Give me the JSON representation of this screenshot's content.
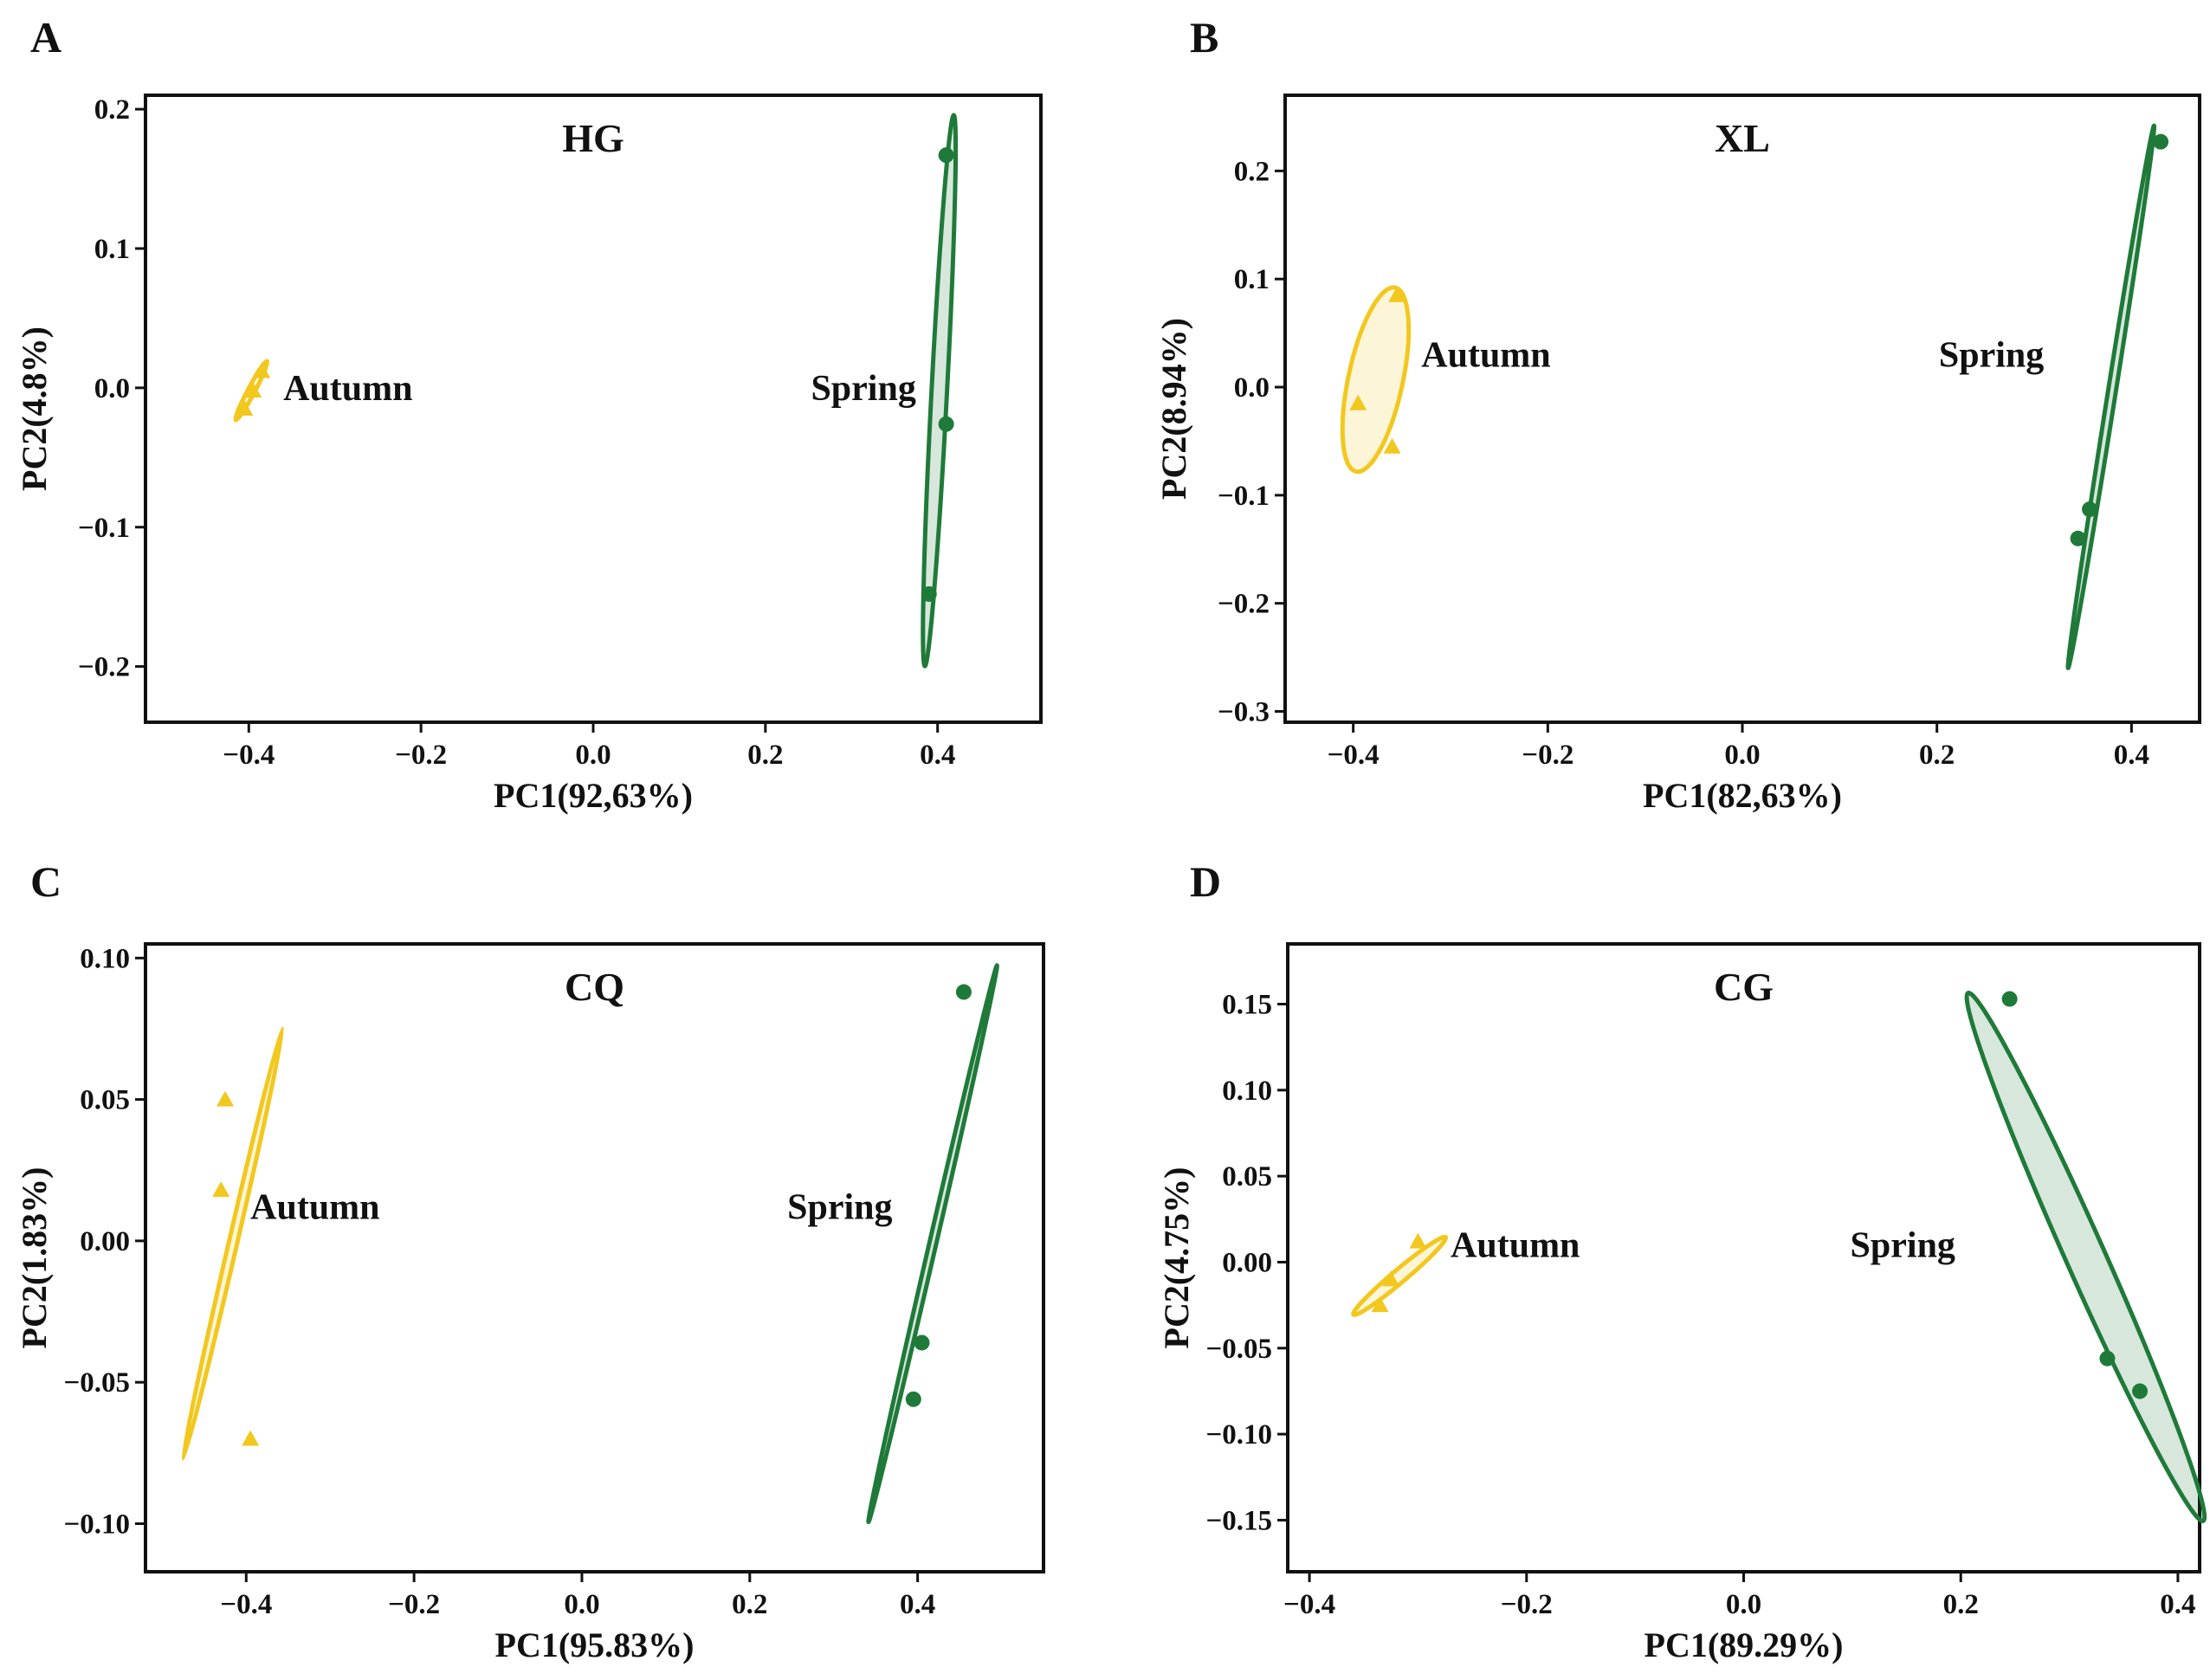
{
  "figure": {
    "background": "#ffffff",
    "axis_color": "#111111"
  },
  "chart_data": [
    {
      "panel": "A",
      "type": "scatter",
      "title": "HG",
      "xlabel": "PC1(92,63%)",
      "ylabel": "PC2(4.8%)",
      "xlim": [
        -0.52,
        0.52
      ],
      "ylim": [
        -0.24,
        0.21
      ],
      "xticks": [
        -0.4,
        -0.2,
        0.0,
        0.2,
        0.4
      ],
      "xtick_labels": [
        "−0.4",
        "−0.2",
        "0.0",
        "0.2",
        "0.4"
      ],
      "yticks": [
        0.2,
        0.1,
        0.0,
        -0.1,
        -0.2
      ],
      "ytick_labels": [
        "0.2",
        "0.1",
        "0.0",
        "−0.1",
        "−0.2"
      ],
      "series": [
        {
          "name": "Autumn",
          "label": "Autumn",
          "color": "#f2c81f",
          "marker": "triangle",
          "points": [
            [
              -0.405,
              -0.015
            ],
            [
              -0.395,
              -0.002
            ],
            [
              -0.385,
              0.012
            ]
          ],
          "ellipse": {
            "cx": -0.397,
            "cy": -0.002,
            "rx": 0.003,
            "ry": 0.024,
            "angle": 28
          },
          "label_at": [
            -0.36,
            0.0
          ],
          "label_anchor": "start"
        },
        {
          "name": "Spring",
          "label": "Spring",
          "color": "#1f7a3a",
          "marker": "circle",
          "points": [
            [
              0.39,
              -0.148
            ],
            [
              0.41,
              -0.026
            ],
            [
              0.41,
              0.167
            ]
          ],
          "ellipse": {
            "cx": 0.402,
            "cy": -0.002,
            "rx": 0.009,
            "ry": 0.198,
            "angle": 3
          },
          "label_at": [
            0.375,
            0.0
          ],
          "label_anchor": "end"
        }
      ]
    },
    {
      "panel": "B",
      "type": "scatter",
      "title": "XL",
      "xlabel": "PC1(82,63%)",
      "ylabel": "PC2(8.94%)",
      "xlim": [
        -0.47,
        0.47
      ],
      "ylim": [
        -0.31,
        0.27
      ],
      "xticks": [
        -0.4,
        -0.2,
        0.0,
        0.2,
        0.4
      ],
      "xtick_labels": [
        "−0.4",
        "−0.2",
        "0.0",
        "0.2",
        "0.4"
      ],
      "yticks": [
        0.2,
        0.1,
        0.0,
        -0.1,
        -0.2,
        -0.3
      ],
      "ytick_labels": [
        "0.2",
        "0.1",
        "0.0",
        "−0.1",
        "−0.2",
        "−0.3"
      ],
      "series": [
        {
          "name": "Autumn",
          "label": "Autumn",
          "color": "#f2c81f",
          "marker": "triangle",
          "points": [
            [
              -0.395,
              -0.015
            ],
            [
              -0.36,
              -0.055
            ],
            [
              -0.355,
              0.085
            ]
          ],
          "ellipse": {
            "cx": -0.377,
            "cy": 0.007,
            "rx": 0.028,
            "ry": 0.087,
            "angle": 12
          },
          "label_at": [
            -0.33,
            0.03
          ],
          "label_anchor": "start"
        },
        {
          "name": "Spring",
          "label": "Spring",
          "color": "#1f7a3a",
          "marker": "circle",
          "points": [
            [
              0.345,
              -0.14
            ],
            [
              0.357,
              -0.113
            ],
            [
              0.43,
              0.227
            ]
          ],
          "ellipse": {
            "cx": 0.379,
            "cy": -0.009,
            "rx": 0.004,
            "ry": 0.254,
            "angle": 9
          },
          "label_at": [
            0.31,
            0.03
          ],
          "label_anchor": "end"
        }
      ]
    },
    {
      "panel": "C",
      "type": "scatter",
      "title": "CQ",
      "xlabel": "PC1(95.83%)",
      "ylabel": "PC2(1.83%)",
      "xlim": [
        -0.52,
        0.55
      ],
      "ylim": [
        -0.117,
        0.105
      ],
      "xticks": [
        -0.4,
        -0.2,
        0.0,
        0.2,
        0.4
      ],
      "xtick_labels": [
        "−0.4",
        "−0.2",
        "0.0",
        "0.2",
        "0.4"
      ],
      "yticks": [
        0.1,
        0.05,
        0.0,
        -0.05,
        -0.1
      ],
      "ytick_labels": [
        "0.10",
        "0.05",
        "0.00",
        "−0.05",
        "−0.10"
      ],
      "series": [
        {
          "name": "Autumn",
          "label": "Autumn",
          "color": "#f2c81f",
          "marker": "triangle",
          "points": [
            [
              -0.425,
              0.05
            ],
            [
              -0.43,
              0.018
            ],
            [
              -0.395,
              -0.07
            ]
          ],
          "ellipse": {
            "cx": -0.416,
            "cy": -0.001,
            "rx": 0.005,
            "ry": 0.078,
            "angle": 13
          },
          "label_at": [
            -0.395,
            0.012
          ],
          "label_anchor": "start"
        },
        {
          "name": "Spring",
          "label": "Spring",
          "color": "#1f7a3a",
          "marker": "circle",
          "points": [
            [
              0.395,
              -0.056
            ],
            [
              0.405,
              -0.036
            ],
            [
              0.455,
              0.088
            ]
          ],
          "ellipse": {
            "cx": 0.418,
            "cy": -0.001,
            "rx": 0.003,
            "ry": 0.101,
            "angle": 13
          },
          "label_at": [
            0.37,
            0.012
          ],
          "label_anchor": "end"
        }
      ]
    },
    {
      "panel": "D",
      "type": "scatter",
      "title": "CG",
      "xlabel": "PC1(89.29%)",
      "ylabel": "PC2(4.75%)",
      "xlim": [
        -0.42,
        0.42
      ],
      "ylim": [
        -0.18,
        0.185
      ],
      "xticks": [
        -0.4,
        -0.2,
        0.0,
        0.2,
        0.4
      ],
      "xtick_labels": [
        "−0.4",
        "−0.2",
        "0.0",
        "0.2",
        "0.4"
      ],
      "yticks": [
        0.15,
        0.1,
        0.05,
        0.0,
        -0.05,
        -0.1,
        -0.15
      ],
      "ytick_labels": [
        "0.15",
        "0.10",
        "0.05",
        "0.00",
        "−0.05",
        "−0.10",
        "−0.15"
      ],
      "series": [
        {
          "name": "Autumn",
          "label": "Autumn",
          "color": "#f2c81f",
          "marker": "triangle",
          "points": [
            [
              -0.335,
              -0.025
            ],
            [
              -0.325,
              -0.01
            ],
            [
              -0.3,
              0.012
            ]
          ],
          "ellipse": {
            "cx": -0.317,
            "cy": -0.008,
            "rx": 0.006,
            "ry": 0.035,
            "angle": 50
          },
          "label_at": [
            -0.27,
            0.01
          ],
          "label_anchor": "start"
        },
        {
          "name": "Spring",
          "label": "Spring",
          "color": "#1f7a3a",
          "marker": "circle",
          "points": [
            [
              0.245,
              0.153
            ],
            [
              0.335,
              -0.056
            ],
            [
              0.365,
              -0.075
            ]
          ],
          "ellipse": {
            "cx": 0.315,
            "cy": 0.003,
            "rx": 0.018,
            "ry": 0.168,
            "angle": -24
          },
          "label_at": [
            0.195,
            0.01
          ],
          "label_anchor": "end"
        }
      ]
    }
  ]
}
